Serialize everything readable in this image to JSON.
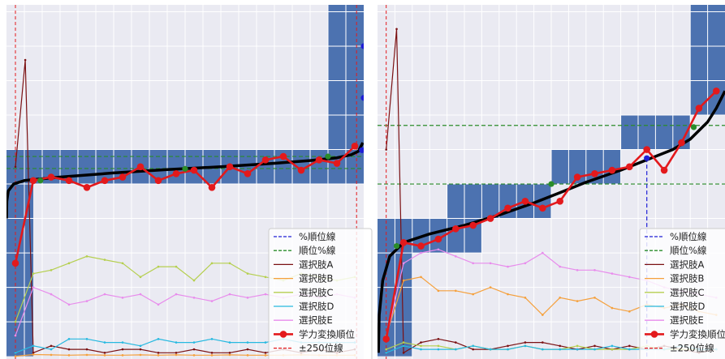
{
  "chart_data": [
    {
      "type": "line",
      "panel": "left",
      "x_count": 20,
      "xlim": [
        0,
        20
      ],
      "ylim": [
        0,
        1
      ],
      "grid": true,
      "legend_placement": "lower-right",
      "colors": {
        "background": "#eaeaf2",
        "band": "#4c72b0",
        "curve": "#000000",
        "rank": "#e3191c",
        "percent_line": "#1f1fd6",
        "rank_line": "#2a8c2a",
        "A": "#7b1113",
        "B": "#f5a03c",
        "C": "#b5cf4f",
        "D": "#27b9e0",
        "E": "#e88cec",
        "limit": "#e3191c"
      },
      "bands": [
        {
          "x0": 0,
          "x1": 20,
          "y0": 0.5,
          "y1": 0.6
        },
        {
          "x0": 0,
          "x1": 1.5,
          "y0": 0,
          "y1": 0.5
        },
        {
          "x0": 18,
          "x1": 20,
          "y0": 0.6,
          "y1": 1.02
        }
      ],
      "percent_line_x": 0,
      "rank_line_ys": [
        0.545,
        0.58
      ],
      "limit_xs": [
        0.5,
        19.6
      ],
      "curve": [
        [
          0,
          0.4
        ],
        [
          0.02,
          0.45
        ],
        [
          0.1,
          0.48
        ],
        [
          0.4,
          0.5
        ],
        [
          1,
          0.51
        ],
        [
          3,
          0.52
        ],
        [
          6,
          0.532
        ],
        [
          9,
          0.542
        ],
        [
          12,
          0.55
        ],
        [
          15,
          0.56
        ],
        [
          17,
          0.568
        ],
        [
          18.5,
          0.576
        ],
        [
          19.3,
          0.585
        ],
        [
          19.7,
          0.595
        ],
        [
          19.95,
          0.62
        ]
      ],
      "rank_series": {
        "name": "学力変換順位",
        "x": [
          0.5,
          1.5,
          2.5,
          3.5,
          4.5,
          5.5,
          6.5,
          7.5,
          8.5,
          9.5,
          10.5,
          11.5,
          12.5,
          13.5,
          14.5,
          15.5,
          16.5,
          17.5,
          18.5,
          19.5
        ],
        "values": [
          0.27,
          0.51,
          0.52,
          0.51,
          0.49,
          0.51,
          0.52,
          0.55,
          0.51,
          0.53,
          0.54,
          0.49,
          0.55,
          0.53,
          0.57,
          0.58,
          0.54,
          0.57,
          0.56,
          0.61
        ]
      },
      "markers": [
        {
          "x": 1.9,
          "y": 0.51,
          "color": "#2a8c2a"
        },
        {
          "x": 10.0,
          "y": 0.544,
          "color": "#2a8c2a"
        },
        {
          "x": 18.0,
          "y": 0.58,
          "color": "#2a8c2a"
        },
        {
          "x": 19.9,
          "y": 0.598,
          "color": "#1f1fd6"
        },
        {
          "x": 20.0,
          "y": 0.9,
          "color": "#1f1fd6"
        },
        {
          "x": 20.0,
          "y": 0.75,
          "color": "#1f1fd6"
        }
      ],
      "series": [
        {
          "key": "A",
          "name": "選択肢A",
          "x": [
            0.5,
            1.05,
            1.5,
            2.5,
            3.5,
            4.5,
            5.5,
            6.5,
            7.5,
            8.5,
            9.5,
            10.5,
            11.5,
            12.5,
            13.5,
            14.5,
            15.5,
            16.5,
            17.5,
            18.5,
            19.5
          ],
          "values": [
            0.55,
            0.86,
            0.01,
            0.03,
            0.02,
            0.02,
            0.01,
            0.02,
            0.02,
            0.01,
            0.01,
            0.02,
            0.01,
            0.01,
            0.02,
            0.01,
            0.02,
            0.01,
            0.02,
            0.01,
            0.02
          ]
        },
        {
          "key": "B",
          "name": "選択肢B",
          "x": [
            0.5,
            1.5,
            2.5,
            3.5,
            4.5,
            5.5,
            6.5,
            7.5,
            8.5,
            9.5,
            10.5,
            11.5,
            12.5,
            13.5,
            14.5,
            15.5,
            16.5,
            17.5,
            18.5,
            19.5
          ],
          "values": [
            0.0,
            0.005,
            0.004,
            0.003,
            0.004,
            0.003,
            0.003,
            0.004,
            0.003,
            0.004,
            0.003,
            0.003,
            0.004,
            0.003,
            0.003,
            0.003,
            0.004,
            0.003,
            0.003,
            0.003
          ]
        },
        {
          "key": "C",
          "name": "選択肢C",
          "x": [
            0.5,
            1.5,
            2.5,
            3.5,
            4.5,
            5.5,
            6.5,
            7.5,
            8.5,
            9.5,
            10.5,
            11.5,
            12.5,
            13.5,
            14.5,
            15.5,
            16.5,
            17.5,
            18.5,
            19.5
          ],
          "values": [
            0.1,
            0.24,
            0.25,
            0.27,
            0.29,
            0.28,
            0.27,
            0.23,
            0.26,
            0.26,
            0.22,
            0.27,
            0.27,
            0.24,
            0.23,
            0.22,
            0.24,
            0.23,
            0.22,
            0.23
          ]
        },
        {
          "key": "D",
          "name": "選択肢D",
          "x": [
            0.5,
            1.5,
            2.5,
            3.5,
            4.5,
            5.5,
            6.5,
            7.5,
            8.5,
            9.5,
            10.5,
            11.5,
            12.5,
            13.5,
            14.5,
            15.5,
            16.5,
            17.5,
            18.5,
            19.5
          ],
          "values": [
            0.01,
            0.03,
            0.02,
            0.05,
            0.05,
            0.04,
            0.04,
            0.03,
            0.05,
            0.04,
            0.04,
            0.05,
            0.04,
            0.04,
            0.04,
            0.05,
            0.04,
            0.04,
            0.04,
            0.04
          ]
        },
        {
          "key": "E",
          "name": "選択肢E",
          "x": [
            0.5,
            1.5,
            2.5,
            3.5,
            4.5,
            5.5,
            6.5,
            7.5,
            8.5,
            9.5,
            10.5,
            11.5,
            12.5,
            13.5,
            14.5,
            15.5,
            16.5,
            17.5,
            18.5,
            19.5
          ],
          "values": [
            0.06,
            0.2,
            0.18,
            0.15,
            0.16,
            0.18,
            0.17,
            0.18,
            0.15,
            0.18,
            0.17,
            0.16,
            0.18,
            0.17,
            0.18,
            0.17,
            0.18,
            0.17,
            0.18,
            0.17
          ]
        }
      ]
    },
    {
      "type": "line",
      "panel": "right",
      "x_count": 20,
      "xlim": [
        0,
        20
      ],
      "ylim": [
        0,
        1
      ],
      "grid": true,
      "legend_placement": "lower-right",
      "bands": [
        {
          "x0": 0,
          "x1": 2,
          "y0": 0,
          "y1": 0.4
        },
        {
          "x0": 0,
          "x1": 6,
          "y0": 0.3,
          "y1": 0.4
        },
        {
          "x0": 4,
          "x1": 10,
          "y0": 0.4,
          "y1": 0.5
        },
        {
          "x0": 10,
          "x1": 14,
          "y0": 0.5,
          "y1": 0.6
        },
        {
          "x0": 14,
          "x1": 18,
          "y0": 0.6,
          "y1": 0.7
        },
        {
          "x0": 18,
          "x1": 20,
          "y0": 0.7,
          "y1": 1.02
        }
      ],
      "percent_line_x": 15.5,
      "rank_line_ys": [
        0.5,
        0.67
      ],
      "limit_xs": [
        0.5
      ],
      "curve": [
        [
          0.05,
          0.01
        ],
        [
          0.1,
          0.12
        ],
        [
          0.3,
          0.22
        ],
        [
          0.7,
          0.29
        ],
        [
          1.5,
          0.33
        ],
        [
          3,
          0.355
        ],
        [
          5,
          0.38
        ],
        [
          7,
          0.41
        ],
        [
          9,
          0.445
        ],
        [
          10.5,
          0.475
        ],
        [
          12,
          0.505
        ],
        [
          14,
          0.54
        ],
        [
          15.5,
          0.57
        ],
        [
          17,
          0.6
        ],
        [
          18,
          0.63
        ],
        [
          19,
          0.68
        ],
        [
          19.5,
          0.72
        ],
        [
          20,
          0.77
        ]
      ],
      "rank_series": {
        "name": "学力変換順位",
        "x": [
          0.5,
          1.5,
          2.5,
          3.5,
          4.5,
          5.5,
          6.5,
          7.5,
          8.5,
          9.5,
          10.5,
          11.5,
          12.5,
          13.5,
          14.5,
          15.5,
          16.5,
          17.5,
          18.5,
          19.5
        ],
        "values": [
          0.05,
          0.33,
          0.32,
          0.34,
          0.37,
          0.38,
          0.4,
          0.43,
          0.45,
          0.43,
          0.45,
          0.52,
          0.53,
          0.54,
          0.55,
          0.6,
          0.54,
          0.62,
          0.72,
          0.77
        ]
      },
      "markers": [
        {
          "x": 1.1,
          "y": 0.32,
          "color": "#2a8c2a"
        },
        {
          "x": 10.0,
          "y": 0.5,
          "color": "#2a8c2a"
        },
        {
          "x": 18.2,
          "y": 0.665,
          "color": "#2a8c2a"
        },
        {
          "x": 15.5,
          "y": 0.575,
          "color": "#1f1fd6"
        }
      ],
      "series": [
        {
          "key": "A",
          "name": "選択肢A",
          "x": [
            0.5,
            1.1,
            1.5,
            2.5,
            3.5,
            4.5,
            5.5,
            6.5,
            7.5,
            8.5,
            9.5,
            10.5,
            11.5,
            12.5,
            13.5,
            14.5,
            15.5,
            16.5,
            17.5,
            18.5,
            19.5
          ],
          "values": [
            0.6,
            0.95,
            0.01,
            0.04,
            0.05,
            0.04,
            0.02,
            0.02,
            0.03,
            0.04,
            0.04,
            0.03,
            0.02,
            0.03,
            0.02,
            0.03,
            0.02,
            0.03,
            0.02,
            0.01,
            0.02
          ]
        },
        {
          "key": "B",
          "name": "選択肢B",
          "x": [
            0.5,
            1.5,
            2.5,
            3.5,
            4.5,
            5.5,
            6.5,
            7.5,
            8.5,
            9.5,
            10.5,
            11.5,
            12.5,
            13.5,
            14.5,
            15.5,
            16.5,
            17.5,
            18.5,
            19.5
          ],
          "values": [
            0.06,
            0.22,
            0.23,
            0.19,
            0.19,
            0.18,
            0.2,
            0.18,
            0.17,
            0.12,
            0.17,
            0.16,
            0.17,
            0.14,
            0.13,
            0.15,
            0.14,
            0.15,
            0.13,
            0.12
          ]
        },
        {
          "key": "C",
          "name": "選択肢C",
          "x": [
            0.5,
            1.5,
            2.5,
            3.5,
            4.5,
            5.5,
            6.5,
            7.5,
            8.5,
            9.5,
            10.5,
            11.5,
            12.5,
            13.5,
            14.5,
            15.5,
            16.5,
            17.5,
            18.5,
            19.5
          ],
          "values": [
            0.02,
            0.04,
            0.03,
            0.03,
            0.02,
            0.03,
            0.02,
            0.02,
            0.03,
            0.02,
            0.02,
            0.03,
            0.02,
            0.02,
            0.02,
            0.03,
            0.02,
            0.02,
            0.02,
            0.02
          ]
        },
        {
          "key": "D",
          "name": "選択肢D",
          "x": [
            0.5,
            1.5,
            2.5,
            3.5,
            4.5,
            5.5,
            6.5,
            7.5,
            8.5,
            9.5,
            10.5,
            11.5,
            12.5,
            13.5,
            14.5,
            15.5,
            16.5,
            17.5,
            18.5,
            19.5
          ],
          "values": [
            0.01,
            0.03,
            0.02,
            0.02,
            0.02,
            0.03,
            0.02,
            0.02,
            0.03,
            0.02,
            0.02,
            0.02,
            0.02,
            0.03,
            0.02,
            0.02,
            0.02,
            0.03,
            0.02,
            0.02
          ]
        },
        {
          "key": "E",
          "name": "選択肢E",
          "x": [
            0.5,
            1.5,
            2.5,
            3.5,
            4.5,
            5.5,
            6.5,
            7.5,
            8.5,
            9.5,
            10.5,
            11.5,
            12.5,
            13.5,
            14.5,
            15.5,
            16.5,
            17.5,
            18.5,
            19.5
          ],
          "values": [
            0.05,
            0.27,
            0.3,
            0.31,
            0.29,
            0.27,
            0.27,
            0.26,
            0.27,
            0.3,
            0.26,
            0.25,
            0.25,
            0.24,
            0.23,
            0.22,
            0.2,
            0.19,
            0.18,
            0.17
          ]
        }
      ]
    }
  ],
  "legend": {
    "items": [
      {
        "key": "pct",
        "label": "%順位線",
        "style": "dash",
        "color": "#1f1fd6"
      },
      {
        "key": "rnk",
        "label": "順位%線",
        "style": "dash",
        "color": "#2a8c2a"
      },
      {
        "key": "A",
        "label": "選択肢A",
        "style": "solid",
        "color": "#7b1113"
      },
      {
        "key": "B",
        "label": "選択肢B",
        "style": "solid",
        "color": "#f5a03c"
      },
      {
        "key": "C",
        "label": "選択肢C",
        "style": "solid",
        "color": "#b5cf4f"
      },
      {
        "key": "D",
        "label": "選択肢D",
        "style": "solid",
        "color": "#27b9e0"
      },
      {
        "key": "E",
        "label": "選択肢E",
        "style": "solid",
        "color": "#e88cec"
      },
      {
        "key": "rank",
        "label": "学力変換順位",
        "style": "marker",
        "color": "#e3191c"
      },
      {
        "key": "limit",
        "label": "±250位線",
        "style": "dash",
        "color": "#e3191c"
      }
    ]
  }
}
